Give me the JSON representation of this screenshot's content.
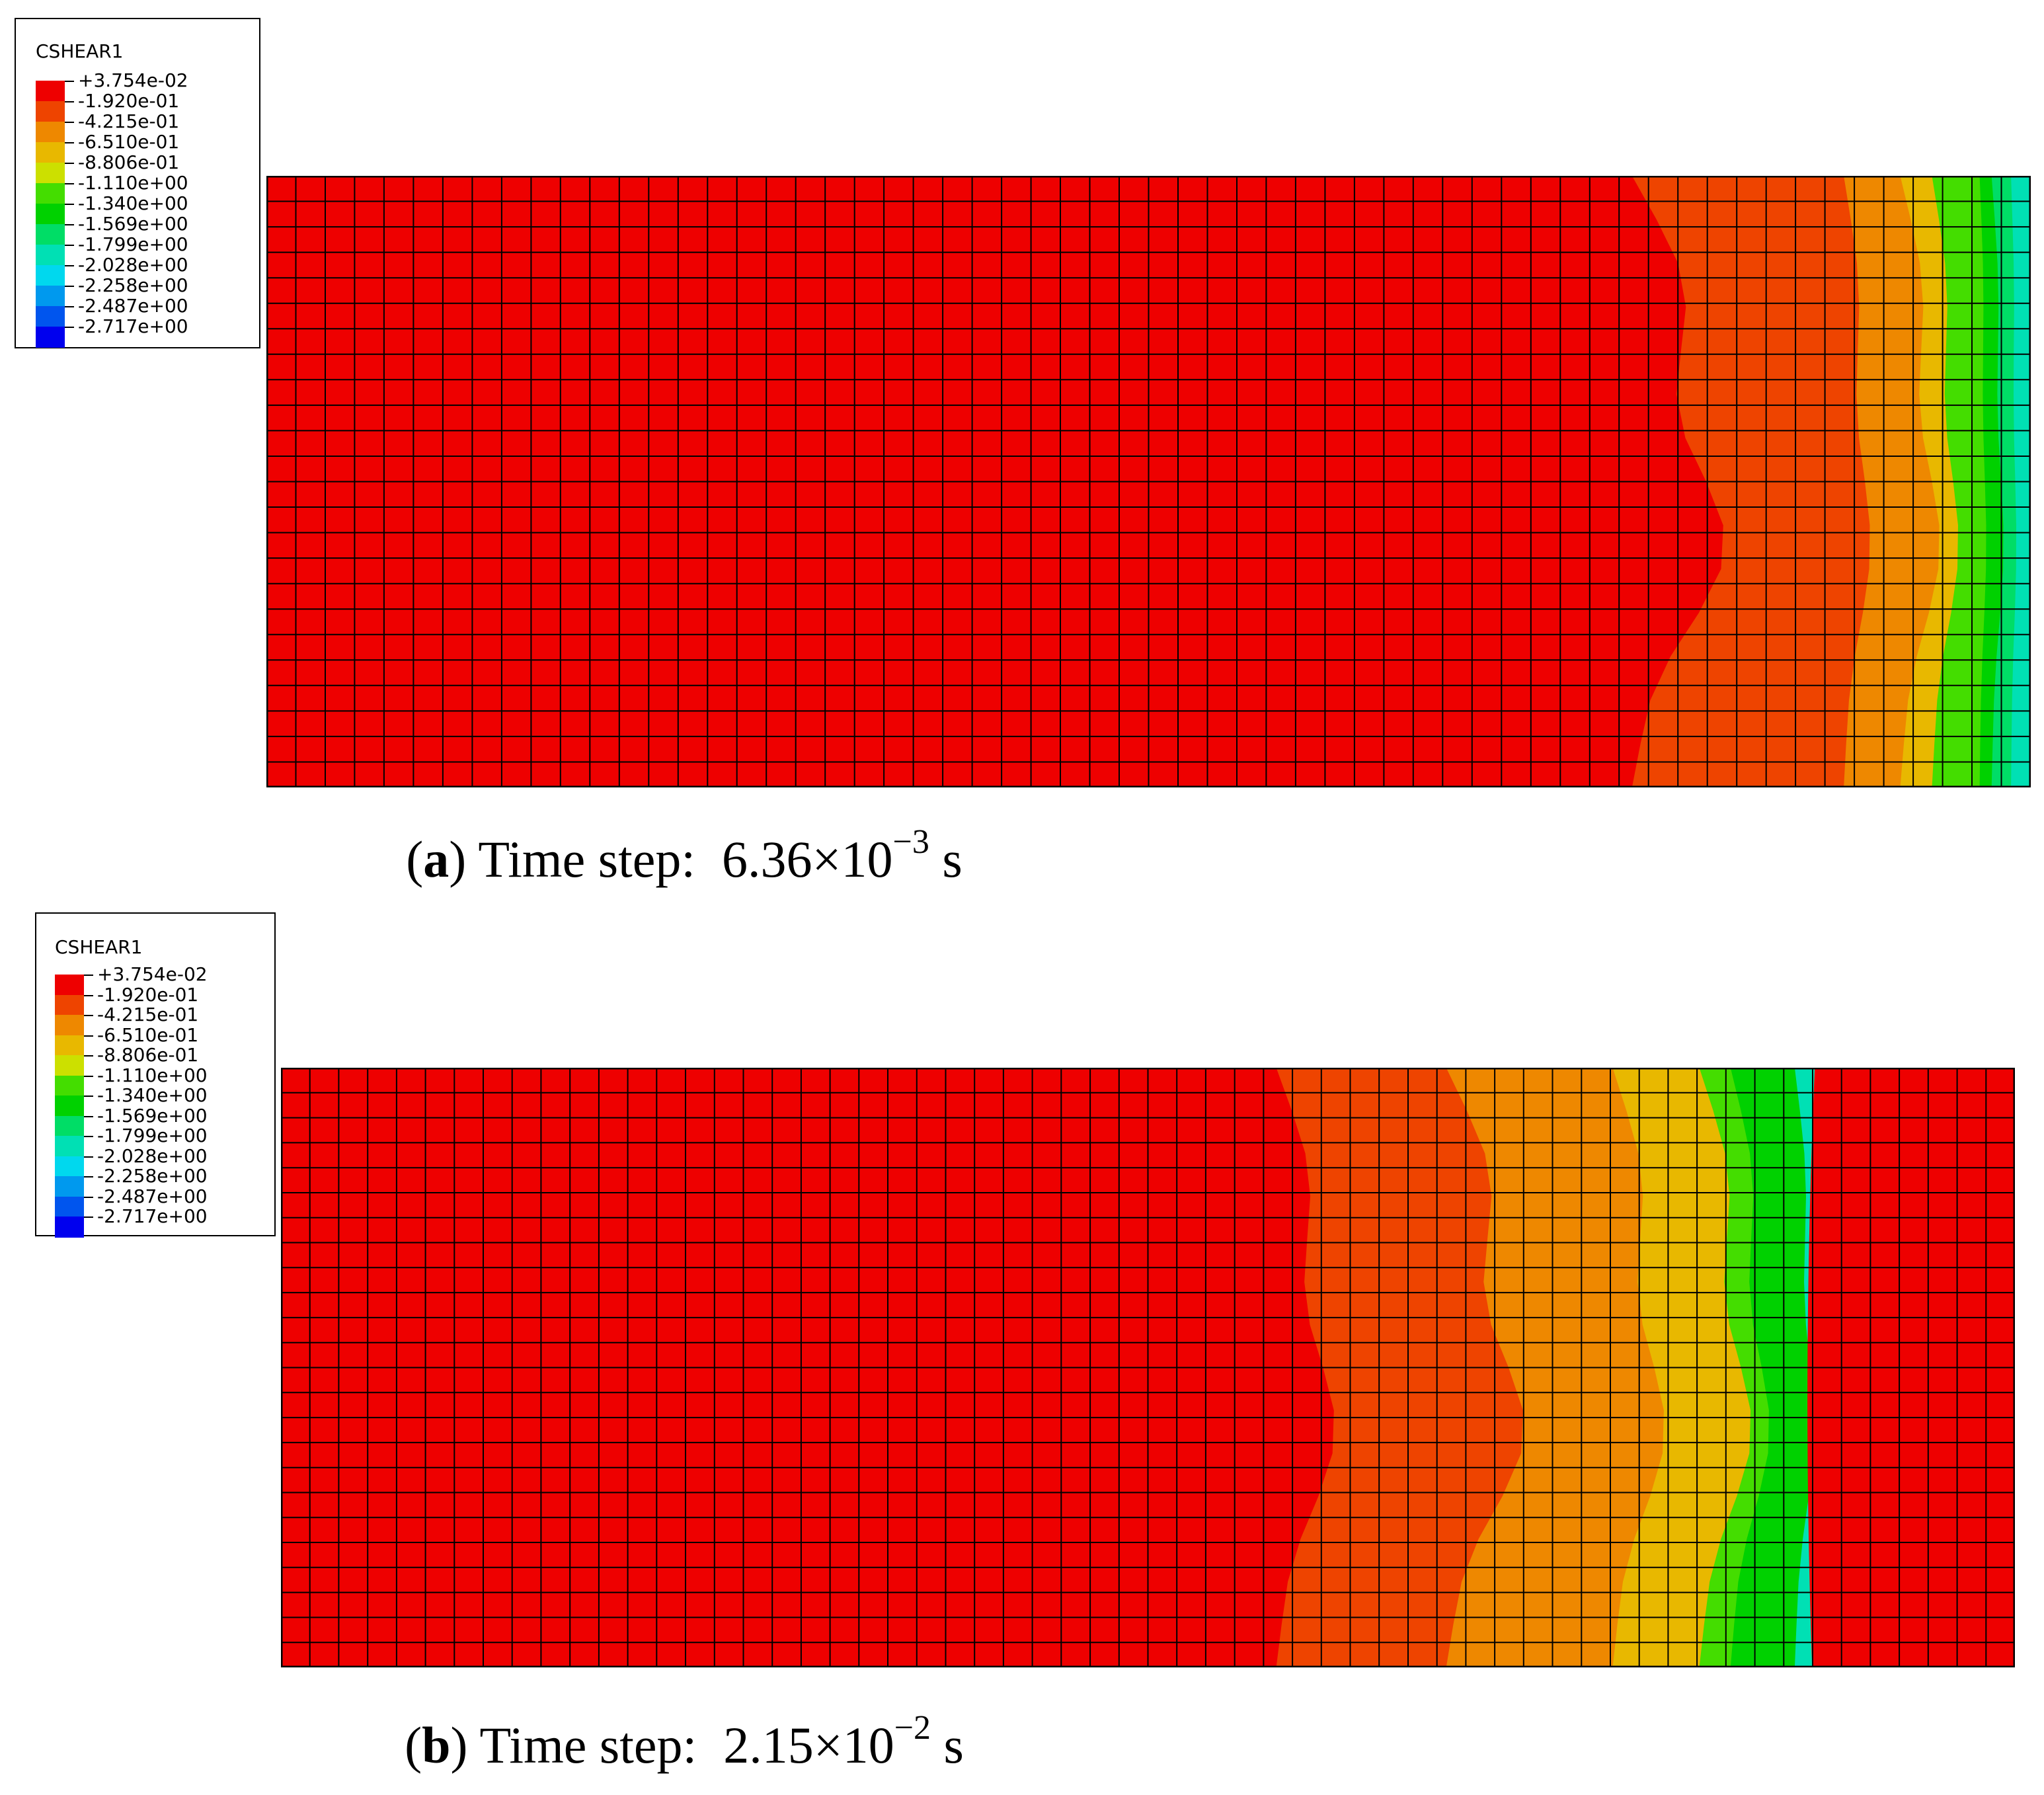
{
  "legend": {
    "title": "CSHEAR1",
    "labels": [
      "+3.754e-02",
      "-1.920e-01",
      "-4.215e-01",
      "-6.510e-01",
      "-8.806e-01",
      "-1.110e+00",
      "-1.340e+00",
      "-1.569e+00",
      "-1.799e+00",
      "-2.028e+00",
      "-2.258e+00",
      "-2.487e+00",
      "-2.717e+00"
    ],
    "colors": [
      "#ee0000",
      "#ee4400",
      "#ee8800",
      "#e8b800",
      "#cce000",
      "#44dd00",
      "#00d100",
      "#00dd66",
      "#00e0b4",
      "#00d8ee",
      "#0099ee",
      "#0055ee",
      "#0000ee"
    ]
  },
  "mesh": {
    "columns": 60,
    "rows": 24
  },
  "panels": [
    {
      "letter": "a",
      "caption_text": "Time step:",
      "time_mantissa": "6.36×10",
      "time_exponent": "−3",
      "time_unit": "s",
      "contour_bands": [
        {
          "color_index": 1,
          "min_x_fraction": 0.76,
          "max_x_fraction": 0.83
        },
        {
          "color_index": 2,
          "min_x_fraction": 0.89,
          "max_x_fraction": 0.91
        },
        {
          "color_index": 3,
          "min_x_fraction": 0.92,
          "max_x_fraction": 0.95
        },
        {
          "color_index": 5,
          "min_x_fraction": 0.94,
          "max_x_fraction": 0.96
        },
        {
          "color_index": 6,
          "min_x_fraction": 0.97,
          "max_x_fraction": 0.975
        },
        {
          "color_index": 7,
          "min_x_fraction": 0.976,
          "max_x_fraction": 0.985
        },
        {
          "color_index": 8,
          "min_x_fraction": 0.988,
          "max_x_fraction": 0.992
        }
      ],
      "right_red_start_fraction": null
    },
    {
      "letter": "b",
      "caption_text": "Time step:",
      "time_mantissa": "2.15×10",
      "time_exponent": "−2",
      "time_unit": "s",
      "contour_bands": [
        {
          "color_index": 1,
          "min_x_fraction": 0.565,
          "max_x_fraction": 0.61
        },
        {
          "color_index": 2,
          "min_x_fraction": 0.66,
          "max_x_fraction": 0.72
        },
        {
          "color_index": 3,
          "min_x_fraction": 0.76,
          "max_x_fraction": 0.8
        },
        {
          "color_index": 5,
          "min_x_fraction": 0.81,
          "max_x_fraction": 0.85
        },
        {
          "color_index": 6,
          "min_x_fraction": 0.83,
          "max_x_fraction": 0.86
        },
        {
          "color_index": 8,
          "min_x_fraction": 0.87,
          "max_x_fraction": 0.885
        }
      ],
      "right_red_start_fraction": 0.88
    }
  ]
}
